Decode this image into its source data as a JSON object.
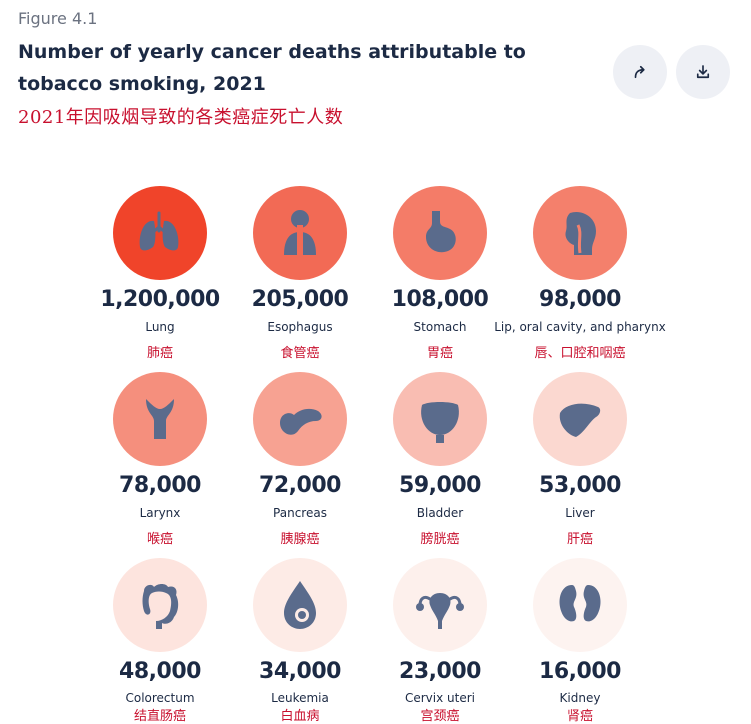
{
  "figure_label": "Figure 4.1",
  "title": "Number of yearly cancer deaths attributable to tobacco smoking, 2021",
  "subtitle_cn": "2021年因吸烟导致的各类癌症死亡人数",
  "actions": {
    "share_icon": "share-arrow-icon",
    "download_icon": "download-icon"
  },
  "colors": {
    "text": "#1c2a44",
    "chinese_text": "#c8102e",
    "icon_fill": "#5a6b8c"
  },
  "chart_data": {
    "type": "table",
    "items": [
      {
        "name": "Lung",
        "name_cn": "肺癌",
        "value": 1200000,
        "value_label": "1,200,000",
        "icon": "lungs-icon",
        "circle_color": "#f0442a"
      },
      {
        "name": "Esophagus",
        "name_cn": "食管癌",
        "value": 205000,
        "value_label": "205,000",
        "icon": "esophagus-icon",
        "circle_color": "#f26a55"
      },
      {
        "name": "Stomach",
        "name_cn": "胃癌",
        "value": 108000,
        "value_label": "108,000",
        "icon": "stomach-icon",
        "circle_color": "#f47c68"
      },
      {
        "name": "Lip, oral cavity, and pharynx",
        "name_cn": "唇、口腔和咽癌",
        "value": 98000,
        "value_label": "98,000",
        "icon": "throat-icon",
        "circle_color": "#f4806c"
      },
      {
        "name": "Larynx",
        "name_cn": "喉癌",
        "value": 78000,
        "value_label": "78,000",
        "icon": "larynx-icon",
        "circle_color": "#f58f7d"
      },
      {
        "name": "Pancreas",
        "name_cn": "胰腺癌",
        "value": 72000,
        "value_label": "72,000",
        "icon": "pancreas-icon",
        "circle_color": "#f7a292"
      },
      {
        "name": "Bladder",
        "name_cn": "膀胱癌",
        "value": 59000,
        "value_label": "59,000",
        "icon": "bladder-icon",
        "circle_color": "#f9bdb2"
      },
      {
        "name": "Liver",
        "name_cn": "肝癌",
        "value": 53000,
        "value_label": "53,000",
        "icon": "liver-icon",
        "circle_color": "#fbd8d0"
      },
      {
        "name": "Colorectum",
        "name_cn": "结直肠癌",
        "value": 48000,
        "value_label": "48,000",
        "icon": "colon-icon",
        "circle_color": "#fde4de"
      },
      {
        "name": "Leukemia",
        "name_cn": "白血病",
        "value": 34000,
        "value_label": "34,000",
        "icon": "blood-drop-icon",
        "circle_color": "#fdebe6"
      },
      {
        "name": "Cervix uteri",
        "name_cn": "宫颈癌",
        "value": 23000,
        "value_label": "23,000",
        "icon": "uterus-icon",
        "circle_color": "#fdf0ec"
      },
      {
        "name": "Kidney",
        "name_cn": "肾癌",
        "value": 16000,
        "value_label": "16,000",
        "icon": "kidney-icon",
        "circle_color": "#fdf3f0"
      }
    ]
  }
}
